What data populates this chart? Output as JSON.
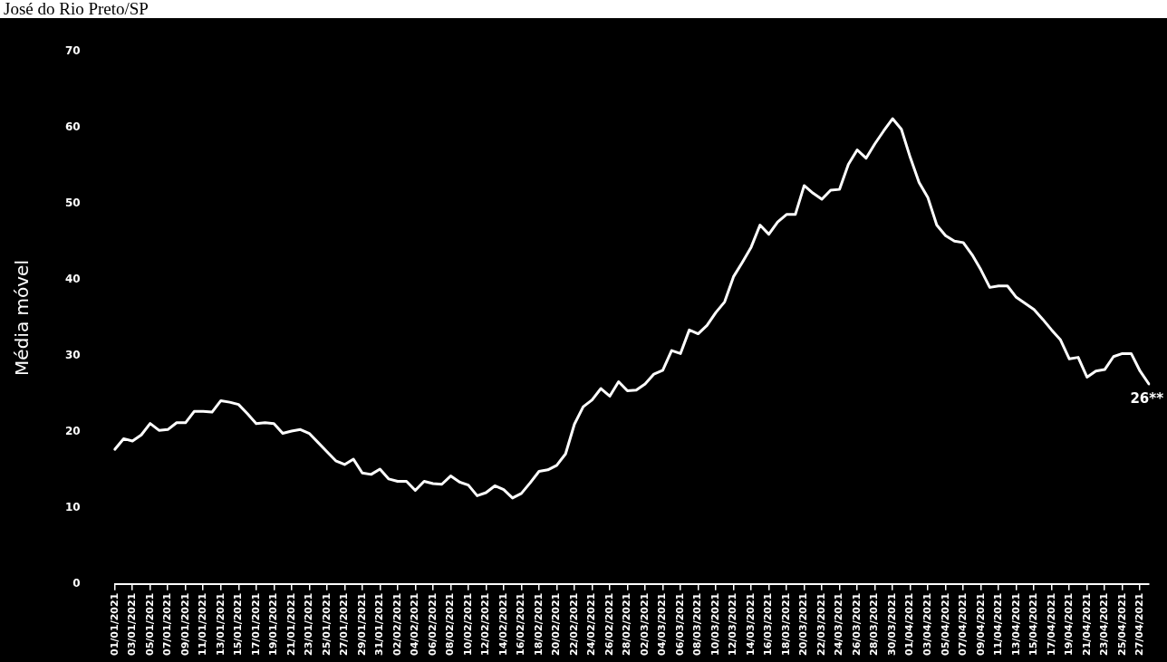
{
  "chart_data": {
    "type": "line",
    "title": "José do Rio Preto/SP",
    "ylabel": "Média móvel",
    "categories": [
      "01/01/2021",
      null,
      "03/01/2021",
      null,
      "05/01/2021",
      null,
      "07/01/2021",
      null,
      "09/01/2021",
      null,
      "11/01/2021",
      null,
      "13/01/2021",
      null,
      "15/01/2021",
      null,
      "17/01/2021",
      null,
      "19/01/2021",
      null,
      "21/01/2021",
      null,
      "23/01/2021",
      null,
      "25/01/2021",
      null,
      "27/01/2021",
      null,
      "29/01/2021",
      null,
      "31/01/2021",
      null,
      "02/02/2021",
      null,
      "04/02/2021",
      null,
      "06/02/2021",
      null,
      "08/02/2021",
      null,
      "10/02/2021",
      null,
      "12/02/2021",
      null,
      "14/02/2021",
      null,
      "16/02/2021",
      null,
      "18/02/2021",
      null,
      "20/02/2021",
      null,
      "22/02/2021",
      null,
      "24/02/2021",
      null,
      "26/02/2021",
      null,
      "28/02/2021",
      null,
      "02/03/2021",
      null,
      "04/03/2021",
      null,
      "06/03/2021",
      null,
      "08/03/2021",
      null,
      "10/03/2021",
      null,
      "12/03/2021",
      null,
      "14/03/2021",
      null,
      "16/03/2021",
      null,
      "18/03/2021",
      null,
      "20/03/2021",
      null,
      "22/03/2021",
      null,
      "24/03/2021",
      null,
      "26/03/2021",
      null,
      "28/03/2021",
      null,
      "30/03/2021",
      null,
      "01/04/2021",
      null,
      "03/04/2021",
      null,
      "05/04/2021",
      null,
      "07/04/2021",
      null,
      "09/04/2021",
      null,
      "11/04/2021",
      null,
      "13/04/2021",
      null,
      "15/04/2021",
      null,
      "17/04/2021",
      null,
      "19/04/2021",
      null,
      "21/04/2021",
      null,
      "23/04/2021",
      null,
      "25/04/2021",
      null,
      "27/04/2021",
      null
    ],
    "series": [
      {
        "color": "#ffffff",
        "values": [
          17.7,
          19.1,
          18.8,
          19.6,
          21.1,
          20.2,
          20.3,
          21.2,
          21.2,
          22.7,
          22.7,
          22.6,
          24.1,
          23.9,
          23.6,
          22.4,
          21.1,
          21.2,
          21.1,
          19.8,
          20.1,
          20.3,
          19.8,
          18.6,
          17.4,
          16.2,
          15.7,
          16.4,
          14.6,
          14.4,
          15.1,
          13.8,
          13.5,
          13.5,
          12.3,
          13.5,
          13.2,
          13.1,
          14.2,
          13.4,
          13.0,
          11.6,
          12.0,
          12.9,
          12.4,
          11.3,
          11.9,
          13.3,
          14.8,
          15.0,
          15.6,
          17.1,
          21.0,
          23.3,
          24.2,
          25.7,
          24.7,
          26.6,
          25.4,
          25.5,
          26.3,
          27.6,
          28.1,
          30.7,
          30.3,
          33.4,
          32.9,
          34.0,
          35.7,
          37.1,
          40.4,
          42.3,
          44.3,
          47.2,
          46.0,
          47.6,
          48.6,
          48.6,
          52.4,
          51.4,
          50.6,
          51.8,
          51.9,
          55.2,
          57.1,
          56.0,
          57.9,
          59.6,
          61.2,
          59.8,
          56.1,
          52.8,
          50.8,
          47.2,
          45.8,
          45.1,
          44.9,
          43.3,
          41.3,
          39.0,
          39.2,
          39.2,
          37.7,
          36.9,
          36.1,
          34.8,
          33.4,
          32.1,
          29.6,
          29.8,
          27.2,
          28.0,
          28.2,
          29.9,
          30.3,
          30.3,
          28.0,
          26.3
        ]
      }
    ],
    "ylim": [
      0,
      70
    ],
    "yticks": [
      0,
      10,
      20,
      30,
      40,
      50,
      60,
      70
    ],
    "grid": false,
    "legend": false,
    "marker": "none",
    "line_style": "solid",
    "annotations": [
      "26**"
    ]
  }
}
